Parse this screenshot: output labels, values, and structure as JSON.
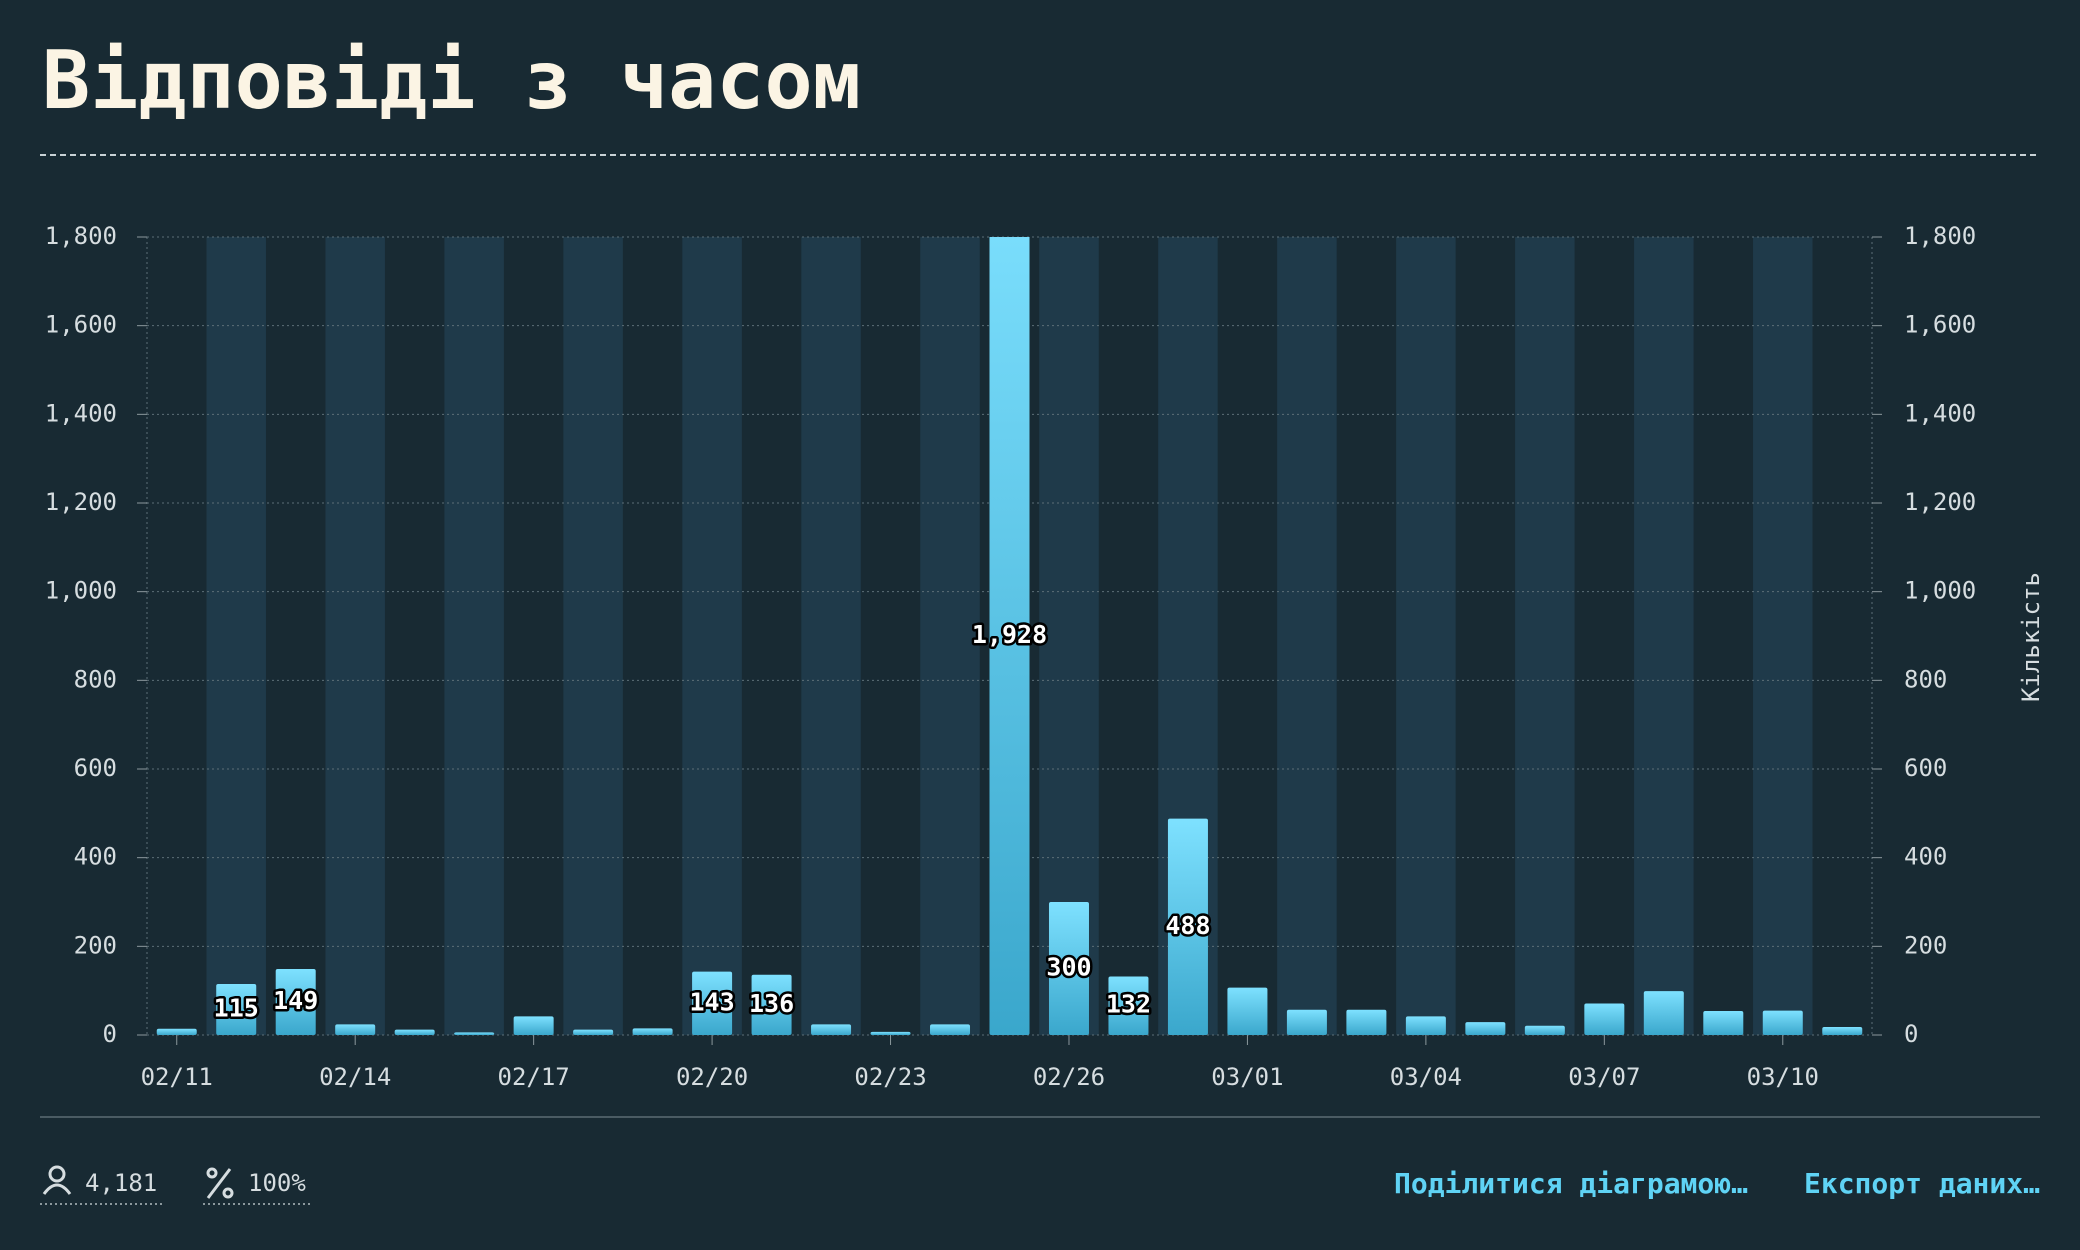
{
  "chart_data": {
    "type": "bar",
    "title": "Відповіді з часом",
    "y2label": "Кількість",
    "categories": [
      "02/11",
      "02/12",
      "02/13",
      "02/14",
      "02/15",
      "02/16",
      "02/17",
      "02/18",
      "02/19",
      "02/20",
      "02/21",
      "02/22",
      "02/23",
      "02/24",
      "02/25",
      "02/26",
      "02/27",
      "02/28",
      "03/01",
      "03/02",
      "03/03",
      "03/04",
      "03/05",
      "03/06",
      "03/07",
      "03/08",
      "03/09",
      "03/10",
      "03/11"
    ],
    "xtick_every": 3,
    "values": [
      14,
      115,
      149,
      24,
      12,
      6,
      42,
      12,
      15,
      143,
      136,
      24,
      7,
      24,
      1928,
      300,
      132,
      488,
      107,
      57,
      57,
      42,
      29,
      21,
      71,
      99,
      54,
      55,
      18
    ],
    "value_labels": [
      null,
      "115",
      "149",
      null,
      null,
      null,
      null,
      null,
      null,
      "143",
      "136",
      null,
      null,
      null,
      "1,928",
      "300",
      "132",
      "488",
      null,
      null,
      null,
      null,
      null,
      null,
      null,
      null,
      null,
      null,
      null
    ],
    "gradient": [
      "#7ee1ff",
      "#3aa7cc"
    ],
    "ylim": [
      0,
      1800
    ],
    "yticks": [
      0,
      200,
      400,
      600,
      800,
      {
        "value": 1000,
        "label": "1,000"
      },
      {
        "value": 1200,
        "label": "1,200"
      },
      {
        "value": 1400,
        "label": "1,400"
      },
      {
        "value": 1600,
        "label": "1,600"
      },
      {
        "value": 1800,
        "label": "1,800"
      }
    ],
    "y2lim": [
      0,
      1800
    ],
    "y2ticks": [
      0,
      200,
      400,
      600,
      800,
      {
        "value": 1000,
        "label": "1,000"
      },
      {
        "value": 1200,
        "label": "1,200"
      },
      {
        "value": 1400,
        "label": "1,400"
      },
      {
        "value": 1600,
        "label": "1,600"
      },
      {
        "value": 1800,
        "label": "1,800"
      }
    ],
    "grid": true
  },
  "footer": {
    "respondents": "4,181",
    "completion": "100%",
    "share": "Поділитися діаграмою…",
    "export": "Експорт даних…"
  }
}
